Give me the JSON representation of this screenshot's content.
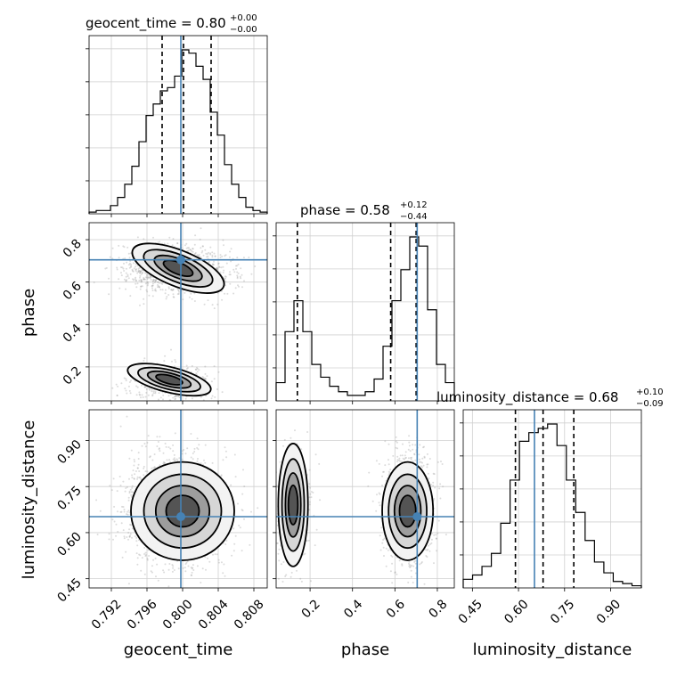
{
  "chart_data": {
    "type": "corner",
    "parameters": [
      "geocent_time",
      "phase",
      "luminosity_distance"
    ],
    "truths": {
      "geocent_time": 0.7998,
      "phase": 0.705,
      "luminosity_distance": 0.652
    },
    "titles": [
      {
        "param": "geocent_time",
        "prefix": "geocent_time = ",
        "median": "0.80",
        "plus": "+0.00",
        "minus": "−0.00"
      },
      {
        "param": "phase",
        "prefix": "phase = ",
        "median": "0.58",
        "plus": "+0.12",
        "minus": "−0.44"
      },
      {
        "param": "luminosity_distance",
        "prefix": "luminosity_distance = ",
        "median": "0.68",
        "plus": "+0.10",
        "minus": "−0.09"
      }
    ],
    "axes": {
      "geocent_time": {
        "range": [
          0.7895,
          0.8095
        ],
        "ticks": [
          0.792,
          0.796,
          0.8,
          0.804,
          0.808
        ],
        "tick_labels": [
          "0.792",
          "0.796",
          "0.800",
          "0.804",
          "0.808"
        ]
      },
      "phase": {
        "range": [
          0.04,
          0.88
        ],
        "ticks": [
          0.2,
          0.4,
          0.6,
          0.8
        ],
        "tick_labels": [
          "0.2",
          "0.4",
          "0.6",
          "0.8"
        ]
      },
      "luminosity_distance": {
        "range": [
          0.42,
          1.0
        ],
        "ticks": [
          0.45,
          0.6,
          0.75,
          0.9
        ],
        "tick_labels": [
          "0.45",
          "0.60",
          "0.75",
          "0.90"
        ]
      }
    },
    "quantiles": {
      "geocent_time": [
        0.7977,
        0.8001,
        0.8032
      ],
      "phase": [
        0.14,
        0.58,
        0.7
      ],
      "luminosity_distance": [
        0.59,
        0.68,
        0.78
      ]
    },
    "histograms": {
      "geocent_time": {
        "range": [
          0.7895,
          0.8095
        ],
        "counts": [
          1,
          2,
          2,
          5,
          10,
          18,
          29,
          44,
          60,
          67,
          75,
          77,
          84,
          100,
          98,
          90,
          82,
          62,
          48,
          30,
          18,
          10,
          4,
          2,
          1
        ]
      },
      "phase": {
        "range": [
          0.04,
          0.88
        ],
        "counts": [
          10,
          38,
          55,
          38,
          20,
          13,
          8,
          5,
          3,
          3,
          5,
          12,
          30,
          55,
          72,
          90,
          85,
          50,
          20,
          10
        ]
      },
      "luminosity_distance": {
        "range": [
          0.42,
          1.0
        ],
        "counts": [
          4,
          6,
          10,
          16,
          30,
          50,
          68,
          72,
          74,
          76,
          66,
          50,
          35,
          22,
          12,
          7,
          3,
          2,
          1
        ]
      }
    },
    "grid": true,
    "legend": "none",
    "colors": {
      "truth": "#4682b4",
      "hist": "#000000",
      "points": "#9a9a9a"
    }
  }
}
